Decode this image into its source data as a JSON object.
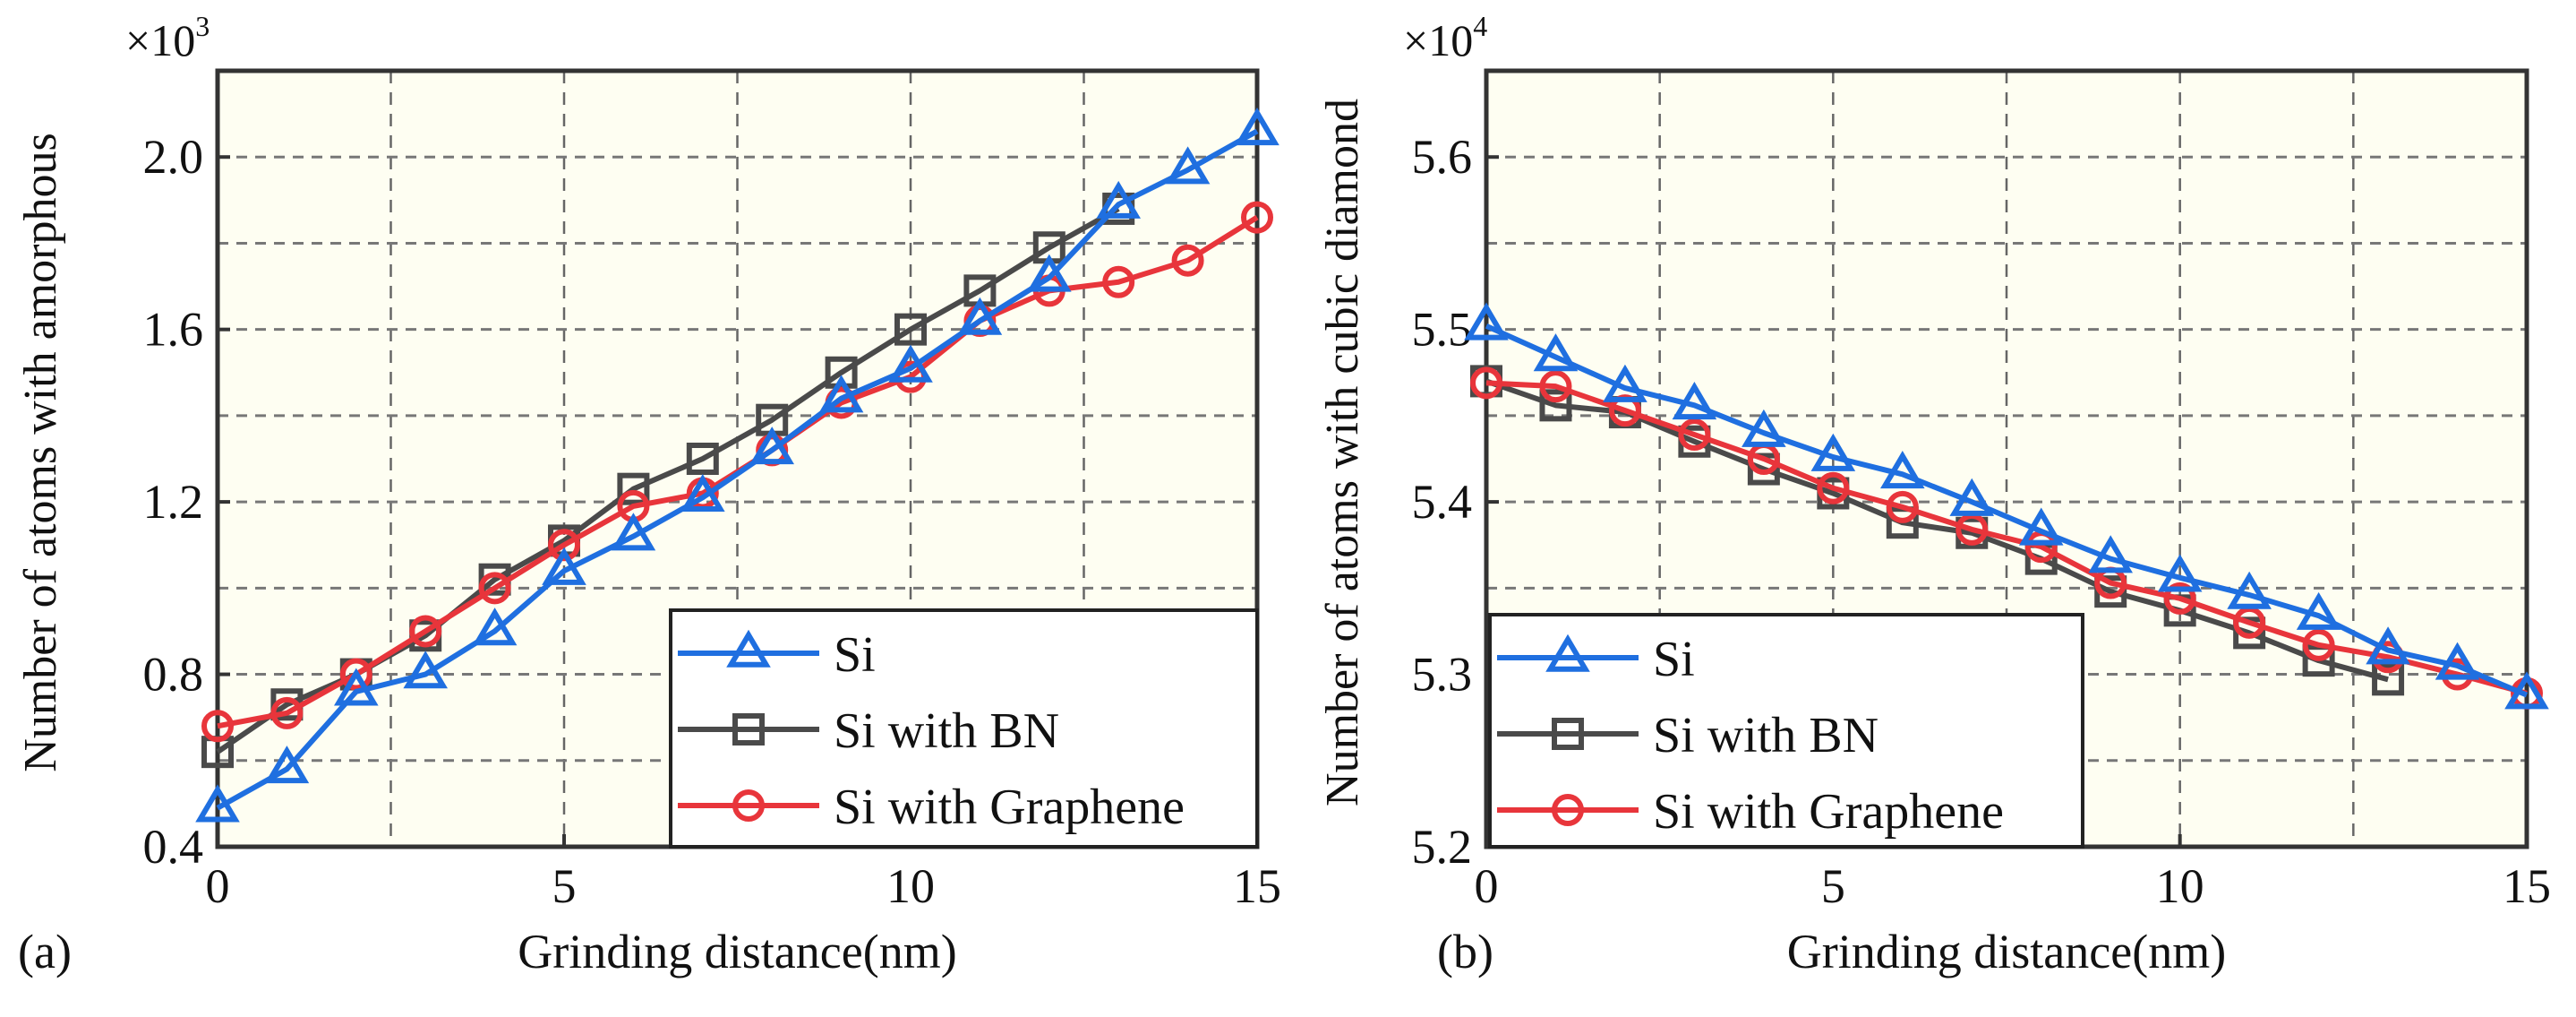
{
  "colors": {
    "si": "#1f6fe0",
    "bn": "#4a4a4a",
    "graphene": "#e8353b",
    "plot_bg": "#fefef2"
  },
  "chart_data": [
    {
      "type": "line",
      "panel_label": "(a)",
      "xlabel": "Grinding distance(nm)",
      "ylabel": "Number of atoms with amorphous",
      "multiplier": "×10",
      "exponent": "3",
      "xlim": [
        0,
        15
      ],
      "ylim": [
        0.4,
        2.2
      ],
      "xticks": [
        0,
        5,
        10,
        15
      ],
      "xtick_labels": [
        "0",
        "5",
        "10",
        "15"
      ],
      "yticks": [
        0.4,
        0.8,
        1.2,
        1.6,
        2.0
      ],
      "ytick_labels": [
        "0.4",
        "0.8",
        "1.2",
        "1.6",
        "2.0"
      ],
      "xgrid_step": 2.5,
      "ygrid_step": 0.2,
      "grid": true,
      "legend": "bottom-right",
      "series": [
        {
          "name": "Si",
          "key": "si",
          "marker": "triangle",
          "x": [
            0,
            1,
            2,
            3,
            4,
            5,
            6,
            7,
            8,
            9,
            10,
            11,
            12,
            13,
            14,
            15
          ],
          "y": [
            0.49,
            0.58,
            0.76,
            0.8,
            0.9,
            1.04,
            1.12,
            1.21,
            1.32,
            1.44,
            1.51,
            1.62,
            1.72,
            1.89,
            1.97,
            2.06
          ]
        },
        {
          "name": "Si with BN",
          "key": "bn",
          "marker": "square",
          "x": [
            0,
            1,
            2,
            3,
            4,
            5,
            6,
            7,
            8,
            9,
            10,
            11,
            12,
            13
          ],
          "y": [
            0.62,
            0.73,
            0.8,
            0.89,
            1.02,
            1.11,
            1.23,
            1.3,
            1.39,
            1.5,
            1.6,
            1.69,
            1.79,
            1.88
          ]
        },
        {
          "name": "Si with Graphene",
          "key": "graphene",
          "marker": "circle",
          "x": [
            0,
            1,
            2,
            3,
            4,
            5,
            6,
            7,
            8,
            9,
            10,
            11,
            12,
            13,
            14,
            15
          ],
          "y": [
            0.68,
            0.71,
            0.8,
            0.9,
            1.0,
            1.1,
            1.19,
            1.22,
            1.32,
            1.43,
            1.49,
            1.62,
            1.69,
            1.71,
            1.76,
            1.86
          ]
        }
      ]
    },
    {
      "type": "line",
      "panel_label": "(b)",
      "xlabel": "Grinding distance(nm)",
      "ylabel": "Number of atoms with cubic diamond",
      "multiplier": "×10",
      "exponent": "4",
      "xlim": [
        0,
        15
      ],
      "ylim": [
        5.2,
        5.65
      ],
      "xticks": [
        0,
        5,
        10,
        15
      ],
      "xtick_labels": [
        "0",
        "5",
        "10",
        "15"
      ],
      "yticks": [
        5.2,
        5.3,
        5.4,
        5.5,
        5.6
      ],
      "ytick_labels": [
        "5.2",
        "5.3",
        "5.4",
        "5.5",
        "5.6"
      ],
      "xgrid_step": 2.5,
      "ygrid_step": 0.05,
      "grid": true,
      "legend": "bottom-left",
      "series": [
        {
          "name": "Si",
          "key": "si",
          "marker": "triangle",
          "x": [
            0,
            1,
            2,
            3,
            4,
            5,
            6,
            7,
            8,
            9,
            10,
            11,
            12,
            13,
            14,
            15
          ],
          "y": [
            5.502,
            5.484,
            5.466,
            5.456,
            5.44,
            5.426,
            5.416,
            5.4,
            5.383,
            5.367,
            5.356,
            5.346,
            5.334,
            5.314,
            5.305,
            5.288
          ]
        },
        {
          "name": "Si with BN",
          "key": "bn",
          "marker": "square",
          "x": [
            0,
            1,
            2,
            3,
            4,
            5,
            6,
            7,
            8,
            9,
            10,
            11,
            12,
            13
          ],
          "y": [
            5.47,
            5.456,
            5.452,
            5.435,
            5.419,
            5.405,
            5.388,
            5.382,
            5.367,
            5.348,
            5.337,
            5.324,
            5.308,
            5.297
          ]
        },
        {
          "name": "Si with Graphene",
          "key": "graphene",
          "marker": "circle",
          "x": [
            0,
            1,
            2,
            3,
            4,
            5,
            6,
            7,
            8,
            9,
            10,
            11,
            12,
            13,
            14,
            15
          ],
          "y": [
            5.469,
            5.467,
            5.453,
            5.439,
            5.425,
            5.408,
            5.397,
            5.384,
            5.374,
            5.353,
            5.344,
            5.33,
            5.317,
            5.31,
            5.3,
            5.289
          ]
        }
      ]
    }
  ]
}
